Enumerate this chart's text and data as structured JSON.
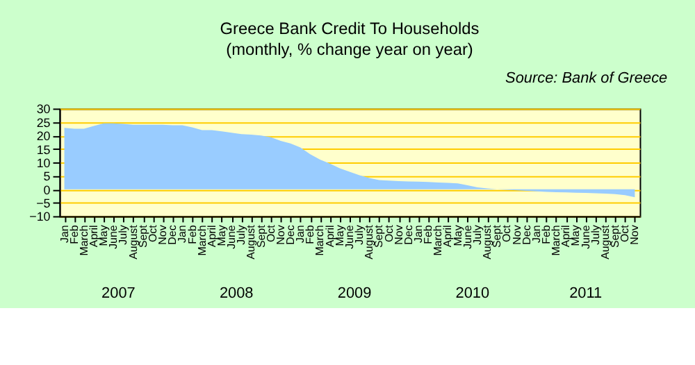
{
  "chart_data": {
    "type": "area",
    "title": "Greece  Bank Credit To Households",
    "subtitle": "(monthly,  % change year on year)",
    "annotations": [
      "Source: Bank of Greece",
      "2007",
      "2008",
      "2009",
      "2010",
      "2011"
    ],
    "categories": [
      "Jan",
      "Feb",
      "March",
      "April",
      "May",
      "June",
      "July",
      "August",
      "Sept",
      "Oct",
      "Nov",
      "Dec",
      "Jan",
      "Feb",
      "March",
      "April",
      "May",
      "June",
      "July",
      "August",
      "Sept",
      "Oct",
      "Nov",
      "Dec",
      "Jan",
      "Feb",
      "March",
      "April",
      "May",
      "June",
      "July",
      "August",
      "Sept",
      "Oct",
      "Nov",
      "Dec",
      "Jan",
      "Feb",
      "March",
      "April",
      "May",
      "June",
      "July",
      "August",
      "Sept",
      "Oct",
      "Nov",
      "Dec",
      "Jan",
      "Feb",
      "March",
      "April",
      "May",
      "June",
      "July",
      "August",
      "Sept",
      "Oct",
      "Nov"
    ],
    "series": [
      {
        "color": "#99ccff",
        "values": [
          22.8,
          22.5,
          22.5,
          23.5,
          24.5,
          24.5,
          24.3,
          24,
          24,
          24,
          24,
          23.8,
          23.8,
          23,
          22,
          22,
          21.5,
          21,
          20.5,
          20.3,
          20,
          19.3,
          18,
          17,
          15.5,
          13,
          11,
          9.5,
          7.8,
          6.5,
          5.2,
          4.2,
          3.4,
          3.2,
          3,
          2.9,
          2.8,
          2.7,
          2.5,
          2.4,
          2.2,
          1.5,
          0.7,
          0.3,
          0,
          -0.2,
          -0.4,
          -0.6,
          -0.8,
          -1,
          -1.1,
          -1.2,
          -1.3,
          -1.4,
          -1.5,
          -1.6,
          -1.8,
          -2.2,
          -3
        ]
      }
    ],
    "ylim": [
      -10,
      30
    ],
    "yticks": [
      -10,
      -5,
      0,
      5,
      10,
      15,
      20,
      25,
      30
    ],
    "grid": "y"
  }
}
